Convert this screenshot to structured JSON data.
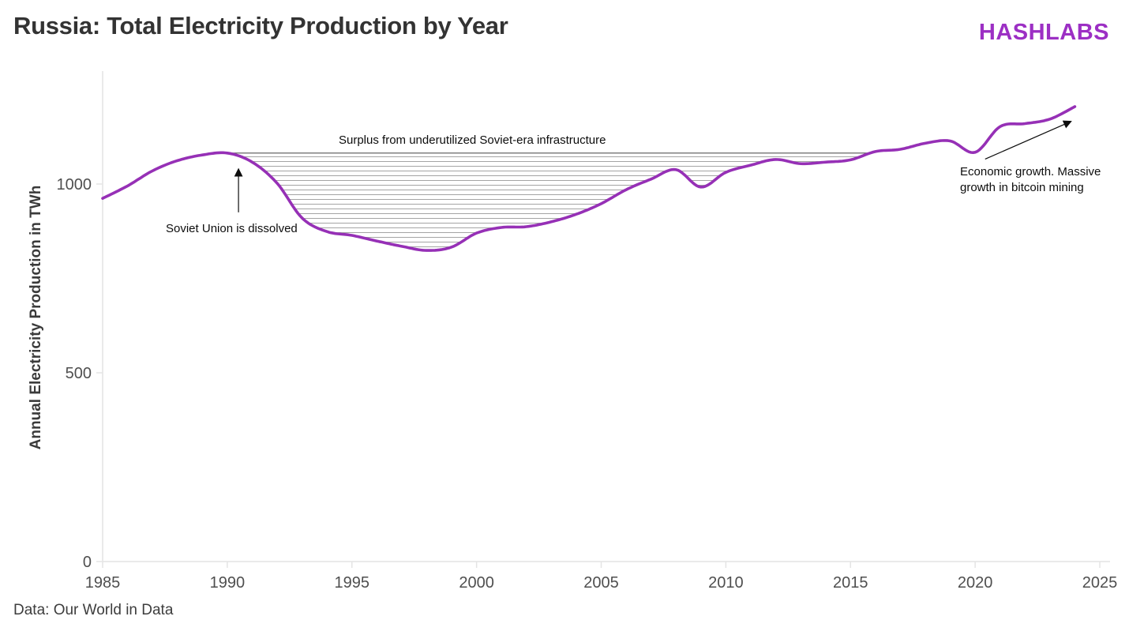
{
  "header": {
    "logo": "HASHLABS"
  },
  "footer": {
    "source": "Data: Our World in Data"
  },
  "colors": {
    "accent": "#9c2fc4",
    "line": "#9630b6",
    "axis": "#e4e4e4",
    "tick_text": "#4f4f4f",
    "hatch": "#8c8c8c",
    "ref_line": "#555555",
    "annotation": "#0d0d0d",
    "title": "#333333"
  },
  "chart_data": {
    "type": "line",
    "title": "Russia: Total Electricity Production by Year",
    "xlabel": "",
    "ylabel": "Annual Electricity Production in TWh",
    "xlim": [
      1985,
      2025
    ],
    "ylim": [
      0,
      1300
    ],
    "grid": false,
    "legend": "none",
    "x_ticks": [
      1985,
      1990,
      1995,
      2000,
      2005,
      2010,
      2015,
      2020,
      2025
    ],
    "y_ticks": [
      0,
      500,
      1000
    ],
    "series": [
      {
        "name": "Annual electricity production (TWh)",
        "x": [
          1985,
          1986,
          1987,
          1988,
          1989,
          1990,
          1991,
          1992,
          1993,
          1994,
          1995,
          1996,
          1997,
          1998,
          1999,
          2000,
          2001,
          2002,
          2003,
          2004,
          2005,
          2006,
          2007,
          2008,
          2009,
          2010,
          2011,
          2012,
          2013,
          2014,
          2015,
          2016,
          2017,
          2018,
          2019,
          2020,
          2021,
          2022,
          2023,
          2024
        ],
        "values": [
          962,
          995,
          1035,
          1062,
          1077,
          1082,
          1058,
          1002,
          910,
          874,
          864,
          849,
          835,
          824,
          833,
          870,
          885,
          887,
          900,
          920,
          948,
          985,
          1013,
          1038,
          992,
          1031,
          1050,
          1065,
          1054,
          1058,
          1064,
          1086,
          1092,
          1108,
          1114,
          1084,
          1152,
          1160,
          1172,
          1205
        ]
      }
    ],
    "reference_line": {
      "value": 1082,
      "style": "horizontal line with hatched area between line and curve"
    },
    "annotations": [
      {
        "id": "surplus",
        "text": "Surplus from underutilized Soviet-era infrastructure"
      },
      {
        "id": "soviet",
        "text": "Soviet Union is dissolved",
        "arrow": {
          "from": [
            1990.45,
            925
          ],
          "to": [
            1990.45,
            1040
          ]
        }
      },
      {
        "id": "bitcoin",
        "text": "Economic growth. Massive growth in bitcoin mining",
        "arrow": {
          "from": [
            2020.4,
            1066
          ],
          "to": [
            2023.85,
            1166
          ]
        }
      }
    ]
  }
}
